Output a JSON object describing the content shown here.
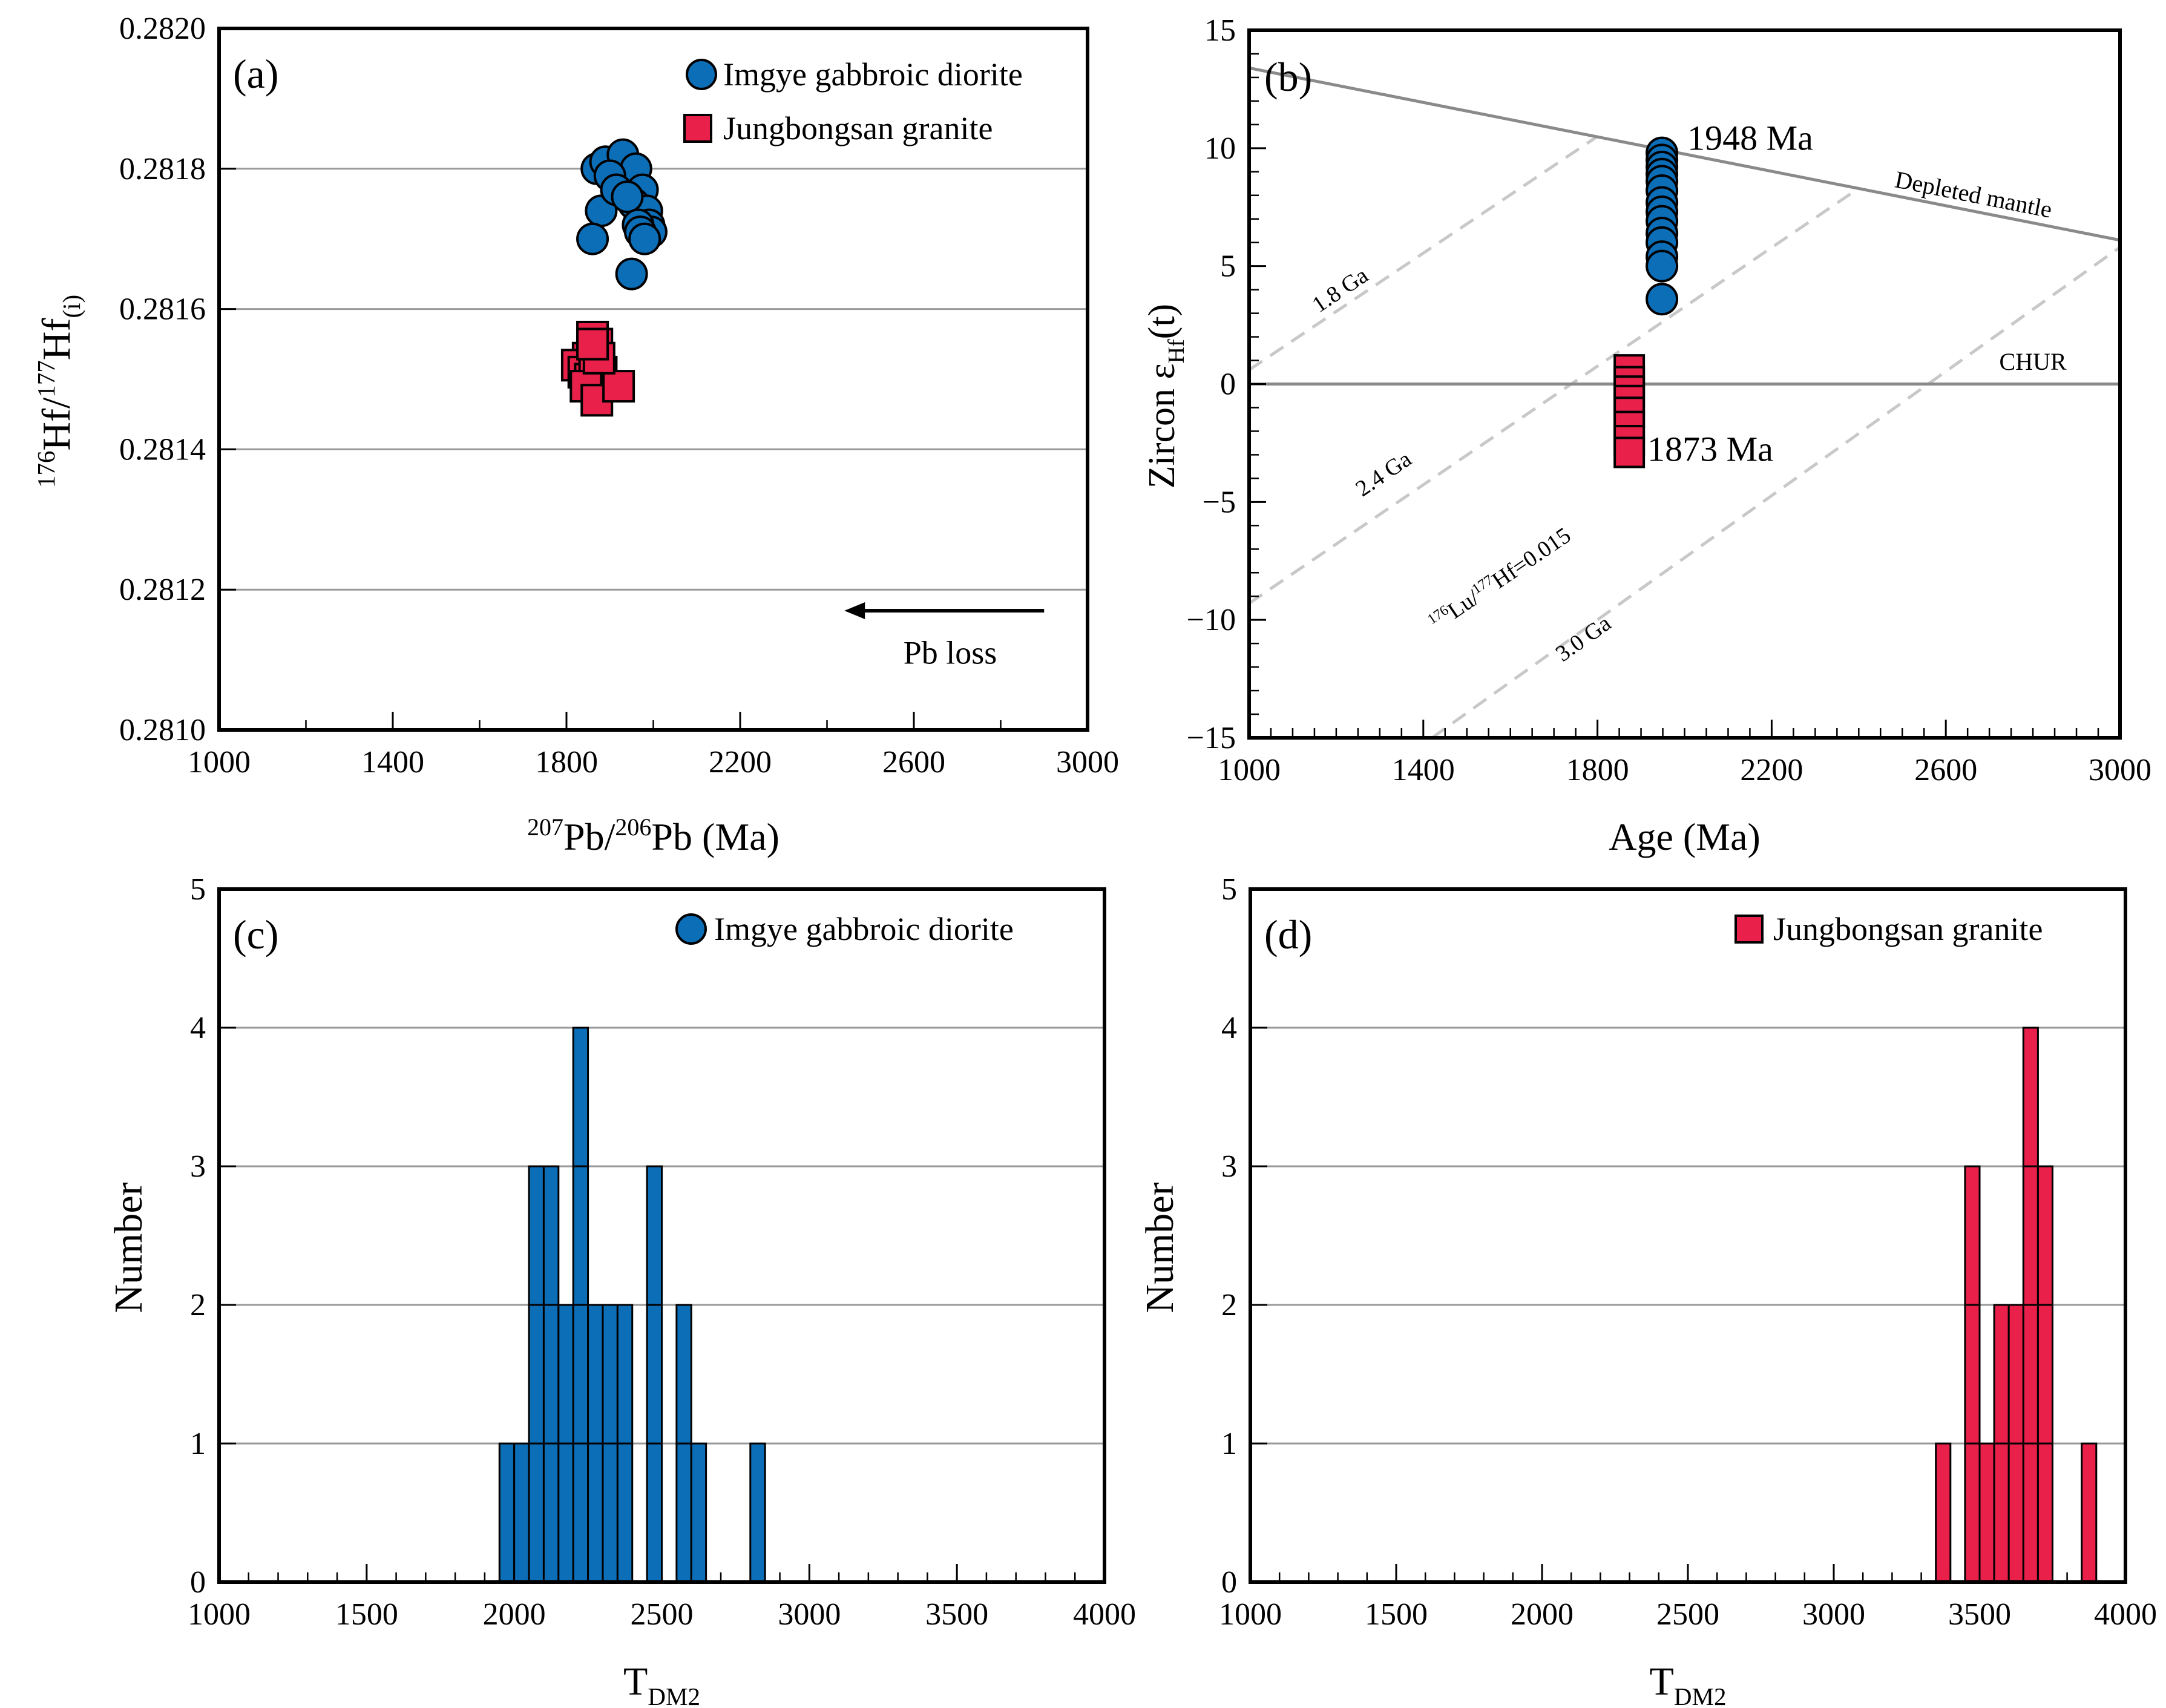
{
  "colors": {
    "blue": "#0d6eb8",
    "red": "#e8204a",
    "grid": "#999999",
    "dashed": "#c8c8c8",
    "refline": "#8a8a8a",
    "blue_label": "#1f6cb5",
    "red_label": "#e0204a"
  },
  "chart_data": [
    {
      "panel": "a",
      "type": "scatter",
      "panel_label": "(a)",
      "xlabel": {
        "sup1": "207",
        "t1": "Pb/",
        "sup2": "206",
        "t2": "Pb (Ma)"
      },
      "ylabel": {
        "sup1": "176",
        "t1": "Hf/",
        "sup2": "177",
        "t2": "Hf",
        "sub": "(i)"
      },
      "xlim": [
        1000,
        3000
      ],
      "ylim": [
        0.281,
        0.282
      ],
      "xticks": [
        "1000",
        "1400",
        "1800",
        "2200",
        "2600",
        "3000"
      ],
      "yticks": [
        "0.2810",
        "0.2812",
        "0.2814",
        "0.2816",
        "0.2818",
        "0.2820"
      ],
      "grid": [
        0.2812,
        0.2814,
        0.2816,
        0.2818
      ],
      "legend": [
        {
          "label": "Imgye gabbroic diorite",
          "marker": "circle",
          "color": "blue"
        },
        {
          "label": "Jungbongsan granite",
          "marker": "square",
          "color": "red"
        }
      ],
      "annotation": {
        "text": "Pb loss",
        "arrow_from": 2900,
        "arrow_to": 2440,
        "arrow_y": 0.28117,
        "text_y": 0.28111
      },
      "series": [
        {
          "name": "Imgye gabbroic diorite",
          "marker": "circle",
          "color": "blue",
          "x": [
            1870,
            1890,
            1930,
            1960,
            1975,
            1955,
            1985,
            1990,
            1995,
            1880,
            1900,
            1915,
            1940,
            1965,
            1970,
            1980,
            1860,
            1950
          ],
          "y": [
            0.2818,
            0.28181,
            0.28182,
            0.2818,
            0.28177,
            0.28175,
            0.28174,
            0.28172,
            0.28171,
            0.28174,
            0.28179,
            0.28177,
            0.28176,
            0.28172,
            0.28171,
            0.2817,
            0.2817,
            0.28165
          ]
        },
        {
          "name": "Jungbongsan granite",
          "marker": "square",
          "color": "red",
          "x": [
            1860,
            1870,
            1850,
            1825,
            1840,
            1855,
            1865,
            1880,
            1845,
            1870,
            1920,
            1875,
            1860
          ],
          "y": [
            0.28156,
            0.28155,
            0.28153,
            0.28152,
            0.28151,
            0.2815,
            0.28152,
            0.28151,
            0.28149,
            0.28147,
            0.28149,
            0.28153,
            0.28155
          ]
        }
      ]
    },
    {
      "panel": "b",
      "type": "scatter",
      "panel_label": "(b)",
      "xlabel": {
        "t1": "Age (Ma)"
      },
      "ylabel": {
        "t1": "Zircon ε",
        "sub": "Hf",
        "t2": "(t)"
      },
      "xlim": [
        1000,
        3000
      ],
      "ylim": [
        -15,
        15
      ],
      "xticks": [
        "1000",
        "1400",
        "1800",
        "2200",
        "2600",
        "3000"
      ],
      "yticks": [
        "−15",
        "−10",
        "−5",
        "0",
        "5",
        "10",
        "15"
      ],
      "lines": [
        {
          "name": "Depleted mantle",
          "x": [
            1000,
            3000
          ],
          "y": [
            13.4,
            6.1
          ],
          "style": "solid",
          "label": "Depleted mantle",
          "label_x": 2660,
          "label_y": 7.7
        },
        {
          "name": "CHUR",
          "x": [
            1000,
            3000
          ],
          "y": [
            0,
            0
          ],
          "style": "solid",
          "label": "CHUR",
          "label_x": 2800,
          "label_y": 0.6
        }
      ],
      "dashed_lines": [
        {
          "label": "1.8 Ga",
          "x": [
            1000,
            1800
          ],
          "y": [
            0.6,
            10.5
          ],
          "label_x": 1160,
          "label_y": 3.0
        },
        {
          "label": "2.4 Ga",
          "x": [
            1000,
            2400
          ],
          "y": [
            -9.3,
            8.3
          ],
          "label_x": 1260,
          "label_y": -4.8
        },
        {
          "label": "3.0 Ga",
          "x": [
            1420,
            3000
          ],
          "y": [
            -15,
            5.8
          ],
          "label_x": 1720,
          "label_y": -11.8
        }
      ],
      "dashed_annotation": {
        "sup1": "176",
        "t1": "Lu/",
        "sup2": "177",
        "t2": "Hf=0.015",
        "x": 1430,
        "y": -10.5
      },
      "series": [
        {
          "name": "Imgye gabbroic diorite",
          "marker": "circle",
          "color": "blue",
          "age_label": "1948 Ma",
          "x": [
            1948,
            1948,
            1948,
            1948,
            1948,
            1948,
            1948,
            1948,
            1948,
            1948,
            1948,
            1948,
            1948,
            1948
          ],
          "y": [
            9.8,
            9.5,
            9.2,
            8.9,
            8.6,
            8.2,
            7.7,
            7.3,
            6.9,
            6.4,
            6.0,
            5.4,
            5.0,
            3.6
          ]
        },
        {
          "name": "Jungbongsan granite",
          "marker": "square",
          "color": "red",
          "age_label": "1873 Ma",
          "x": [
            1873,
            1873,
            1873,
            1873,
            1873,
            1873,
            1873,
            1873
          ],
          "y": [
            0.6,
            0.1,
            -0.3,
            -0.7,
            -1.2,
            -1.8,
            -2.4,
            -2.9
          ]
        }
      ]
    },
    {
      "panel": "c",
      "type": "histogram",
      "panel_label": "(c)",
      "xlabel": {
        "t1": "T",
        "sub": "DM2"
      },
      "ylabel": {
        "t1": "Number"
      },
      "xlim": [
        1000,
        4000
      ],
      "ylim": [
        0,
        5
      ],
      "xticks": [
        "1000",
        "1500",
        "2000",
        "2500",
        "3000",
        "3500",
        "4000"
      ],
      "yticks": [
        "0",
        "1",
        "2",
        "3",
        "4",
        "5"
      ],
      "bin_width": 50,
      "legend": [
        {
          "label": "Imgye gabbroic diorite",
          "marker": "circle",
          "color": "blue"
        }
      ],
      "bins": [
        {
          "x": 1950,
          "count": 1
        },
        {
          "x": 2000,
          "count": 1
        },
        {
          "x": 2050,
          "count": 3
        },
        {
          "x": 2100,
          "count": 3
        },
        {
          "x": 2150,
          "count": 2
        },
        {
          "x": 2200,
          "count": 4
        },
        {
          "x": 2250,
          "count": 2
        },
        {
          "x": 2300,
          "count": 2
        },
        {
          "x": 2350,
          "count": 2
        },
        {
          "x": 2450,
          "count": 3
        },
        {
          "x": 2550,
          "count": 2
        },
        {
          "x": 2600,
          "count": 1
        },
        {
          "x": 2800,
          "count": 1
        }
      ],
      "color": "blue"
    },
    {
      "panel": "d",
      "type": "histogram",
      "panel_label": "(d)",
      "xlabel": {
        "t1": "T",
        "sub": "DM2"
      },
      "ylabel": {
        "t1": "Number"
      },
      "xlim": [
        1000,
        4000
      ],
      "ylim": [
        0,
        5
      ],
      "xticks": [
        "1000",
        "1500",
        "2000",
        "2500",
        "3000",
        "3500",
        "4000"
      ],
      "yticks": [
        "0",
        "1",
        "2",
        "3",
        "4",
        "5"
      ],
      "bin_width": 50,
      "legend": [
        {
          "label": "Jungbongsan granite",
          "marker": "square",
          "color": "red"
        }
      ],
      "bins": [
        {
          "x": 3350,
          "count": 1
        },
        {
          "x": 3450,
          "count": 3
        },
        {
          "x": 3500,
          "count": 1
        },
        {
          "x": 3550,
          "count": 2
        },
        {
          "x": 3600,
          "count": 2
        },
        {
          "x": 3650,
          "count": 4
        },
        {
          "x": 3700,
          "count": 3
        },
        {
          "x": 3850,
          "count": 1
        }
      ],
      "color": "red"
    }
  ]
}
